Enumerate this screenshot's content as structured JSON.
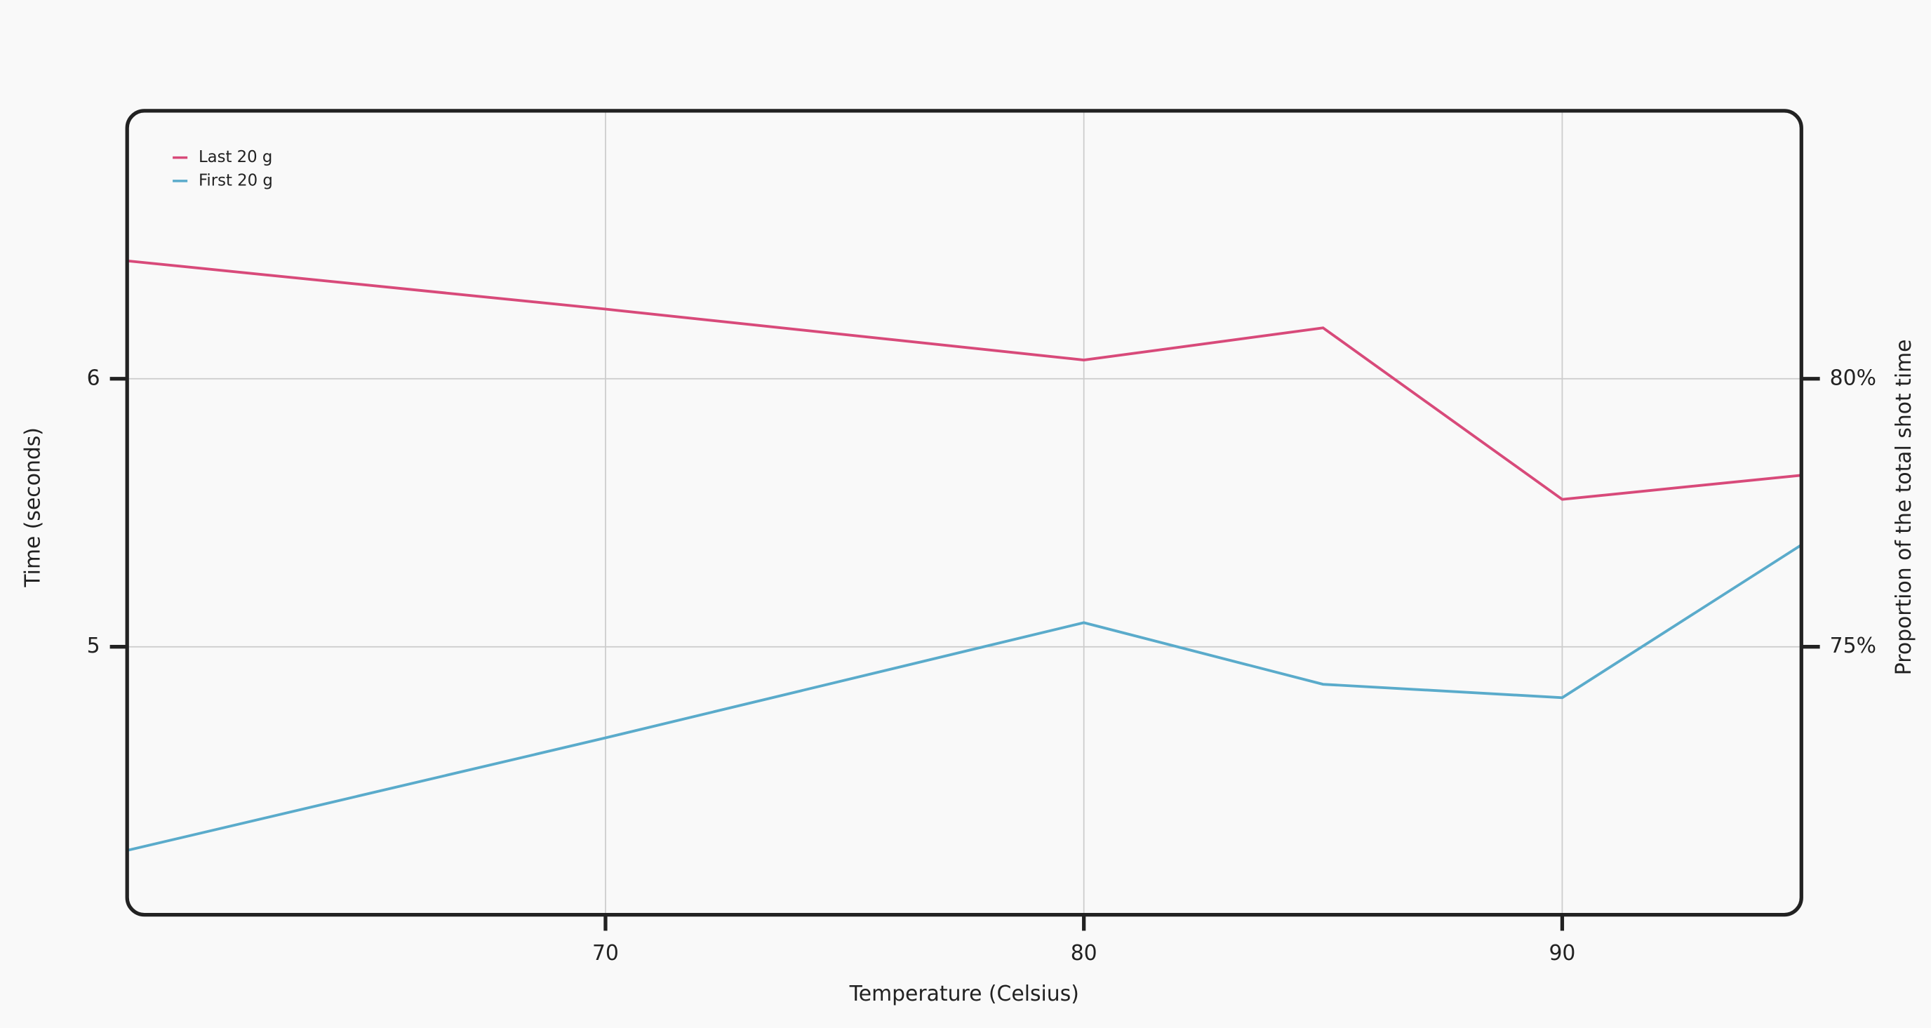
{
  "chart_data": {
    "type": "line",
    "x_label": "Temperature (Celsius)",
    "y_label": "Time (seconds)",
    "y2_label": "Proportion of the total shot time",
    "x": [
      60,
      70,
      80,
      85,
      90,
      95
    ],
    "series": [
      {
        "name": "Last 20 g",
        "color": "#d84a7a",
        "values": [
          6.44,
          6.26,
          6.07,
          6.19,
          5.55,
          5.64
        ]
      },
      {
        "name": "First 20 g",
        "color": "#5aabcb",
        "values": [
          4.24,
          4.66,
          5.09,
          4.86,
          4.81,
          5.38
        ]
      }
    ],
    "xlim": [
      60,
      95
    ],
    "xticks": [
      70,
      80,
      90
    ],
    "ylim": [
      4,
      7
    ],
    "yticks": [
      5,
      6
    ],
    "y2lim": [
      70,
      85
    ],
    "y2ticks": [
      {
        "value": 75,
        "label": "75%"
      },
      {
        "value": 80,
        "label": "80%"
      }
    ],
    "grid": true,
    "legend": "top-left"
  }
}
